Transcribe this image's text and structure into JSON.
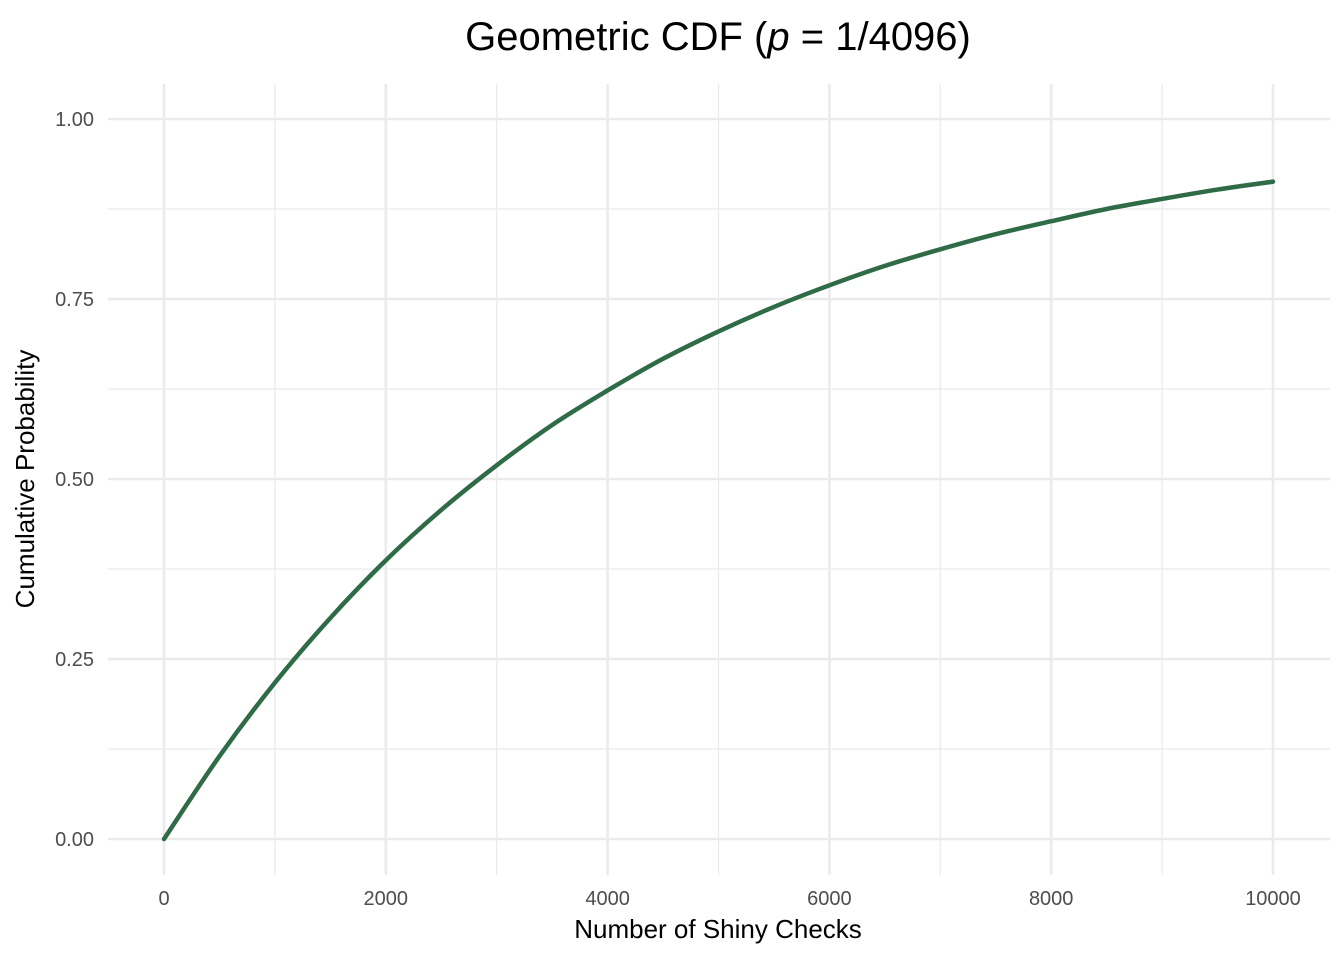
{
  "chart_data": {
    "type": "line",
    "title": "Geometric CDF",
    "title_p_symbol": "p",
    "title_p_value": "= 1/4096)",
    "xlabel": "Number of Shiny Checks",
    "ylabel": "Cumulative Probability",
    "xlim": [
      0,
      10000
    ],
    "ylim": [
      0,
      1
    ],
    "x_ticks": [
      0,
      2000,
      4000,
      6000,
      8000,
      10000
    ],
    "x_tick_labels": [
      "0",
      "2000",
      "4000",
      "6000",
      "8000",
      "10000"
    ],
    "y_ticks": [
      0,
      0.25,
      0.5,
      0.75,
      1.0
    ],
    "y_tick_labels": [
      "0.00",
      "0.25",
      "0.50",
      "0.75",
      "1.00"
    ],
    "x_minor_ticks": [
      1000,
      3000,
      5000,
      7000,
      9000
    ],
    "y_minor_ticks": [
      0.125,
      0.375,
      0.625,
      0.875
    ],
    "grid": true,
    "legend": "none",
    "line_color": "#2e6b46",
    "series": [
      {
        "x": [
          0,
          500,
          1000,
          1500,
          2000,
          2500,
          3000,
          3500,
          4000,
          4500,
          5000,
          5500,
          6000,
          6500,
          7000,
          7500,
          8000,
          8500,
          9000,
          9500,
          10000
        ],
        "values": [
          0.0,
          0.115,
          0.217,
          0.307,
          0.387,
          0.457,
          0.519,
          0.575,
          0.623,
          0.667,
          0.705,
          0.739,
          0.769,
          0.796,
          0.819,
          0.84,
          0.858,
          0.875,
          0.889,
          0.902,
          0.913
        ]
      }
    ]
  }
}
